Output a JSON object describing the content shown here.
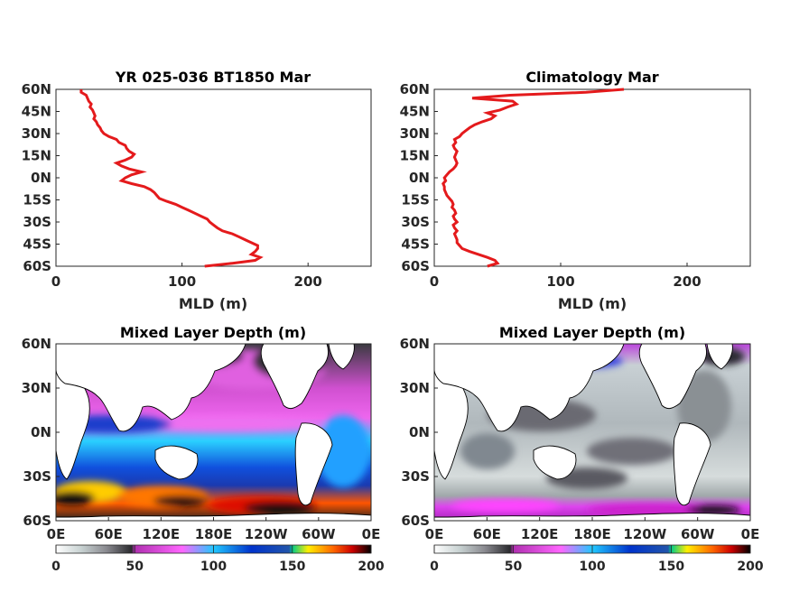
{
  "chart_data": [
    {
      "type": "line",
      "title": "YR 025-036 BT1850 Mar",
      "xlabel": "MLD (m)",
      "xlim": [
        0,
        250
      ],
      "ylim": [
        -60,
        60
      ],
      "xticks": [
        "0",
        "100",
        "200"
      ],
      "yticks": [
        "60N",
        "45N",
        "30N",
        "15N",
        "0N",
        "15S",
        "30S",
        "45S",
        "60S"
      ],
      "line_color": "#e41a1c",
      "series": [
        {
          "lat": [
            -60,
            -58,
            -56,
            -54,
            -52,
            -50,
            -48,
            -46,
            -44,
            -42,
            -40,
            -38,
            -36,
            -34,
            -32,
            -30,
            -28,
            -26,
            -24,
            -22,
            -20,
            -18,
            -16,
            -14,
            -12,
            -10,
            -8,
            -6,
            -4,
            -2,
            0,
            2,
            4,
            6,
            8,
            10,
            12,
            14,
            16,
            18,
            20,
            22,
            24,
            26,
            28,
            30,
            32,
            34,
            36,
            38,
            40,
            42,
            44,
            46,
            48,
            50,
            52,
            54,
            56,
            58,
            60
          ],
          "mld": [
            118,
            140,
            158,
            162,
            155,
            158,
            160,
            160,
            155,
            150,
            145,
            140,
            132,
            128,
            125,
            122,
            120,
            115,
            110,
            105,
            100,
            95,
            88,
            82,
            80,
            78,
            75,
            70,
            60,
            52,
            55,
            60,
            68,
            58,
            52,
            48,
            55,
            60,
            62,
            58,
            56,
            55,
            50,
            48,
            42,
            38,
            36,
            35,
            33,
            32,
            30,
            31,
            30,
            29,
            27,
            28,
            26,
            25,
            24,
            20,
            20
          ]
        }
      ]
    },
    {
      "type": "line",
      "title": "Climatology Mar",
      "xlabel": "MLD (m)",
      "xlim": [
        0,
        250
      ],
      "ylim": [
        -60,
        60
      ],
      "xticks": [
        "0",
        "100",
        "200"
      ],
      "yticks": [
        "60N",
        "45N",
        "30N",
        "15N",
        "0N",
        "15S",
        "30S",
        "45S",
        "60S"
      ],
      "line_color": "#e41a1c",
      "series": [
        {
          "lat": [
            -60,
            -58,
            -56,
            -54,
            -52,
            -50,
            -48,
            -46,
            -44,
            -42,
            -40,
            -38,
            -36,
            -34,
            -32,
            -30,
            -28,
            -26,
            -24,
            -22,
            -20,
            -18,
            -16,
            -14,
            -12,
            -10,
            -8,
            -6,
            -4,
            -2,
            0,
            2,
            4,
            6,
            8,
            10,
            12,
            14,
            16,
            18,
            20,
            22,
            24,
            26,
            28,
            30,
            32,
            34,
            36,
            38,
            40,
            42,
            44,
            46,
            48,
            50,
            52,
            54,
            56,
            58,
            60
          ],
          "mld": [
            42,
            50,
            48,
            42,
            35,
            28,
            22,
            20,
            18,
            18,
            17,
            16,
            18,
            16,
            15,
            18,
            16,
            15,
            17,
            16,
            14,
            15,
            14,
            12,
            10,
            9,
            8,
            8,
            7,
            9,
            8,
            10,
            12,
            15,
            17,
            18,
            17,
            16,
            17,
            18,
            16,
            15,
            17,
            16,
            20,
            22,
            25,
            28,
            32,
            38,
            45,
            48,
            42,
            52,
            58,
            65,
            62,
            30,
            60,
            120,
            150
          ]
        }
      ]
    },
    {
      "type": "heatmap",
      "title": "Mixed Layer Depth (m)",
      "xticks": [
        "0E",
        "60E",
        "120E",
        "180E",
        "120W",
        "60W",
        "0E"
      ],
      "yticks": [
        "60N",
        "30N",
        "0N",
        "30S",
        "60S"
      ],
      "colorbar": {
        "ticks": [
          "0",
          "50",
          "100",
          "150",
          "200"
        ],
        "range": [
          0,
          200
        ],
        "stops": [
          "#ffffff",
          "#b8c4c4",
          "#6a6a70",
          "#1a1a1a",
          "#cc33cc",
          "#ff55ff",
          "#00b8ff",
          "#0033cc",
          "#2244aa",
          "#00dd88",
          "#ffee00",
          "#ff6600",
          "#cc0000",
          "#000000"
        ]
      }
    },
    {
      "type": "heatmap",
      "title": "Mixed Layer Depth (m)",
      "xticks": [
        "0E",
        "60E",
        "120E",
        "180E",
        "120W",
        "60W",
        "0E"
      ],
      "yticks": [
        "60N",
        "30N",
        "0N",
        "30S",
        "60S"
      ],
      "colorbar": {
        "ticks": [
          "0",
          "50",
          "100",
          "150",
          "200"
        ],
        "range": [
          0,
          200
        ],
        "stops": [
          "#ffffff",
          "#b8c4c4",
          "#6a6a70",
          "#1a1a1a",
          "#cc33cc",
          "#ff55ff",
          "#00b8ff",
          "#0033cc",
          "#2244aa",
          "#00dd88",
          "#ffee00",
          "#ff6600",
          "#cc0000",
          "#000000"
        ]
      }
    }
  ]
}
